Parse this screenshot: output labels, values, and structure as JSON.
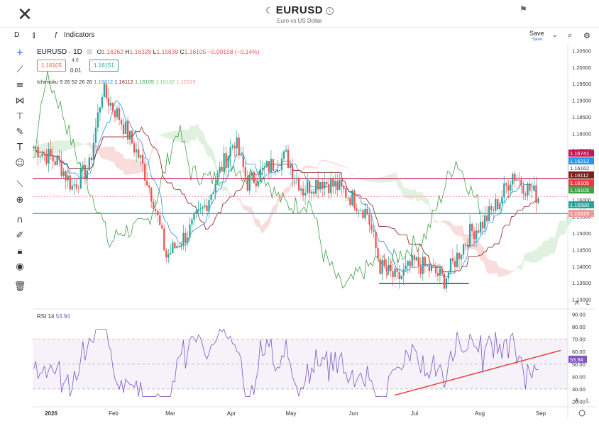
{
  "header": {
    "symbol": "EURUSD",
    "description": "Euro vs US Dollar"
  },
  "toolbar": {
    "interval_label": "D",
    "indicators_label": "Indicators",
    "save_label": "Save",
    "save_sub": "Save"
  },
  "legend": {
    "symbol": "EURUSD · 1D",
    "open_label": "O",
    "open": "1.16262",
    "high_label": "H",
    "high": "1.16328",
    "low_label": "L",
    "low": "1.15839",
    "close_label": "C",
    "close": "1.16105",
    "change": "−0.00158 (−0.14%)",
    "bid": "1.16105",
    "spread_top": "4.6",
    "spread": "0.01",
    "ask": "1.16151",
    "ichimoku_label": "Ichimoku 9 26 52 26 26",
    "ichimoku_values": [
      "1.16212",
      "1.16112",
      "1.16105",
      "1.16162",
      "1.15319"
    ],
    "rsi_label": "RSI 14",
    "rsi_value": "53.94"
  },
  "price_axis": {
    "ticks": [
      "1.20500",
      "1.20000",
      "1.19500",
      "1.19000",
      "1.18500",
      "1.18000",
      "1.17500",
      "1.17000",
      "1.16500",
      "1.16000",
      "1.15500",
      "1.15000",
      "1.14500",
      "1.14000",
      "1.13500",
      "1.13000"
    ],
    "labels": [
      {
        "value": 1.16741,
        "text": "1.16741",
        "color": "#c2185b"
      },
      {
        "value": 1.16212,
        "text": "1.16212",
        "color": "#2196f3"
      },
      {
        "value": 1.16162,
        "text": "1.16162",
        "color": "#ffffff"
      },
      {
        "value": 1.16112,
        "text": "1.16112",
        "color": "#7b1f1f"
      },
      {
        "value": 1.16105,
        "text": "1.16105",
        "color": "#f23645"
      },
      {
        "value": 1.16105,
        "text": "1.16105",
        "color": "#43a047"
      },
      {
        "value": 1.1559,
        "text": "1.15590",
        "color": "#26a69a"
      },
      {
        "value": 1.15319,
        "text": "1.15319",
        "color": "#ef9a9a"
      }
    ],
    "a_label": "A",
    "log_label": "L"
  },
  "rsi_axis": {
    "ticks": [
      "90.00",
      "80.00",
      "70.00",
      "60.00",
      "50.00",
      "40.00",
      "30.00",
      "20.00"
    ],
    "value_label": "53.94",
    "a_label": "A",
    "log_label": "L"
  },
  "time_axis": {
    "labels": [
      "2026",
      "Feb",
      "Mar",
      "Apr",
      "May",
      "Jun",
      "Jul",
      "Aug",
      "Sep"
    ]
  },
  "chart_data": {
    "type": "candlestick",
    "y_range": [
      1.128,
      1.207
    ],
    "levels": {
      "resistance": 1.1665,
      "support": 1.1559,
      "trend_low": 1.1348
    },
    "rsi_range": [
      18,
      92
    ],
    "rsi_bands": [
      30,
      50,
      70
    ]
  },
  "colors": {
    "up": "#26a69a",
    "down": "#ef5350",
    "rsi": "#7e57c2",
    "cloud_up": "#a5d6a7",
    "cloud_down": "#ef9a9a"
  }
}
